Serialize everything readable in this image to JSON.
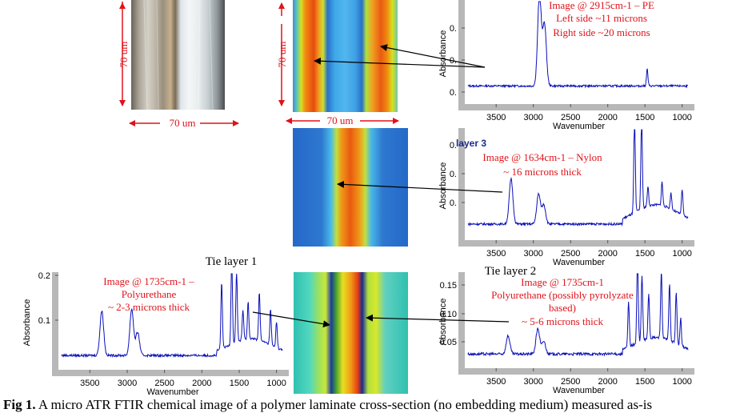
{
  "colors": {
    "annotation_red": "#e0121a",
    "spectrum_blue": "#0a10b8",
    "axis_gray": "#b8b8b8",
    "arrow_black": "#000000"
  },
  "optical": {
    "height_label": "70 um",
    "width_label": "70 um"
  },
  "chem_top": {
    "height_label": "70 um",
    "width_label": "70 um"
  },
  "panels": [
    {
      "id": "spectrum-pe",
      "notes": [
        "Image @ 2915cm-1 – PE",
        "Left side ~11 microns",
        "Right side ~20 microns"
      ],
      "y_label": "Absorbance",
      "x_label": "Wavenumber",
      "x_ticks": [
        "3500",
        "3000",
        "2500",
        "2000",
        "1500",
        "1000"
      ],
      "y_ticks": [
        "0.",
        "0.",
        "0."
      ]
    },
    {
      "id": "spectrum-nylon",
      "layer_title": "layer 3",
      "notes": [
        "Image @ 1634cm-1 – Nylon",
        "~ 16 microns thick"
      ],
      "y_label": "Absorbance",
      "x_label": "Wavenumber",
      "x_ticks": [
        "3500",
        "3000",
        "2500",
        "2000",
        "1500",
        "1000"
      ],
      "y_ticks": [
        "0.",
        "0.",
        "0."
      ]
    },
    {
      "id": "spectrum-tie1",
      "layer_title": "Tie layer 1",
      "notes": [
        "Image @ 1735cm-1 –",
        "Polyurethane",
        "~ 2-3 microns thick"
      ],
      "y_label": "Absorbance",
      "x_label": "Wavenumber",
      "x_ticks": [
        "3500",
        "3000",
        "2500",
        "2000",
        "1500",
        "1000"
      ],
      "y_ticks": [
        "0.2",
        "0.1"
      ]
    },
    {
      "id": "spectrum-tie2",
      "layer_title": "Tie layer 2",
      "notes": [
        "Image @ 1735cm-1",
        "Polyurethane (possibly pyrolyzate",
        "based)",
        "~ 5-6 microns thick"
      ],
      "y_label": "Absorbance",
      "x_label": "Wavenumber",
      "x_ticks": [
        "3500",
        "3000",
        "2500",
        "2000",
        "1500",
        "1000"
      ],
      "y_ticks": [
        "0.15",
        "0.10",
        "0.05"
      ]
    }
  ],
  "caption": {
    "label": "Fig 1.",
    "text": " A micro ATR FTIR chemical image of a polymer laminate cross-section (no embedding medium) measured as-is"
  }
}
